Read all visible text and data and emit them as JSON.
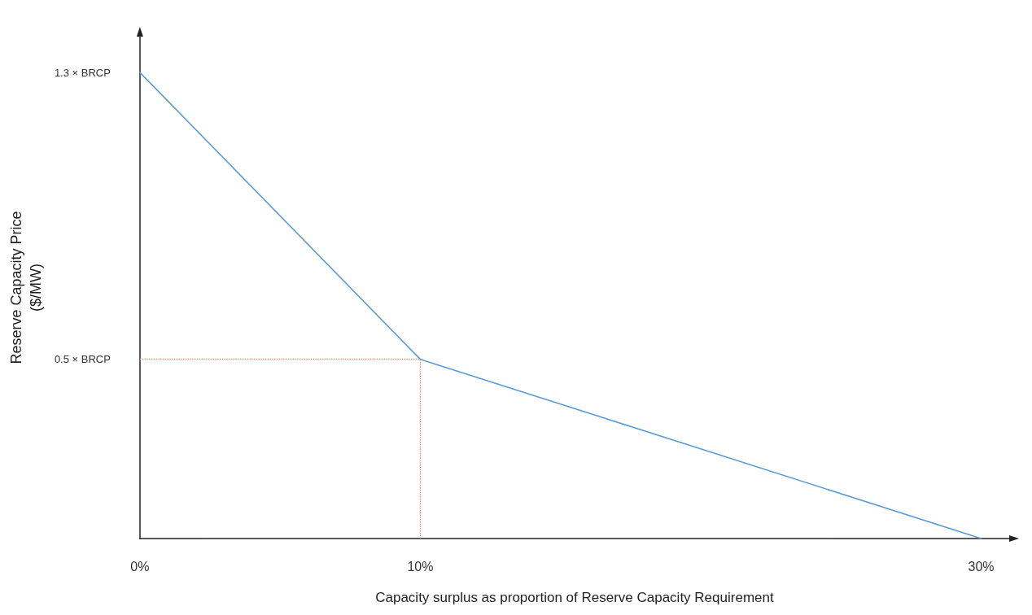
{
  "chart_data": {
    "type": "line",
    "xlabel": "Capacity surplus as proportion of Reserve Capacity Requirement",
    "ylabel": "Reserve Capacity Price\n($/MW)",
    "x": [
      0,
      10,
      30
    ],
    "series": [
      {
        "color": "#5b9bd5",
        "values": [
          1.3,
          0.5,
          0
        ]
      }
    ],
    "xlim": [
      0,
      31
    ],
    "ylim": [
      0,
      1.4
    ],
    "xticks": [
      {
        "value": 0,
        "label": "0%"
      },
      {
        "value": 10,
        "label": "10%"
      },
      {
        "value": 30,
        "label": "30%"
      }
    ],
    "yticks": [
      {
        "value": 0.5,
        "label": "0.5 × BRCP"
      },
      {
        "value": 1.3,
        "label": "1.3 × BRCP"
      }
    ],
    "ref_lines": [
      {
        "axis": "x",
        "value": 10,
        "color": "#f4846c",
        "line_style": "dotted"
      },
      {
        "axis": "y",
        "value": 0.5,
        "color": "#f4846c",
        "line_style": "dotted"
      }
    ],
    "grid": false,
    "legend": false,
    "marker": "none",
    "line_style": "solid"
  }
}
